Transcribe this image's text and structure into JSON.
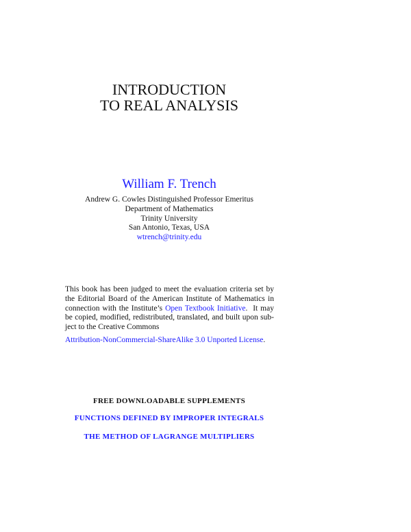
{
  "title": {
    "line1": "INTRODUCTION",
    "line2": "TO REAL ANALYSIS"
  },
  "author": {
    "name": "William F. Trench",
    "position": "Andrew G. Cowles Distinguished Professor Emeritus",
    "department": "Department of Mathematics",
    "university": "Trinity University",
    "location": "San Antonio, Texas, USA",
    "email": "wtrench@trinity.edu"
  },
  "notice": {
    "line1": "This book has been judged to meet the evaluation criteria set by",
    "line2": "the Editorial Board of the American Institute of Mathematics in",
    "line3_pre": "connection with the Institute’s ",
    "line3_link": "Open Textbook Initiative",
    "line3_post": ".  It may",
    "line4": "be copied, modified, redistributed, translated, and built upon sub-",
    "line5": "ject to the Creative Commons",
    "license_link": "Attribution-NonCommercial-ShareAlike 3.0 Unported License",
    "license_end": "."
  },
  "supplements": {
    "heading": "FREE DOWNLOADABLE SUPPLEMENTS",
    "items": [
      "FUNCTIONS DEFINED BY IMPROPER INTEGRALS",
      "THE METHOD OF LAGRANGE MULTIPLIERS"
    ]
  },
  "colors": {
    "link": "#1a1aff",
    "text": "#111111"
  }
}
